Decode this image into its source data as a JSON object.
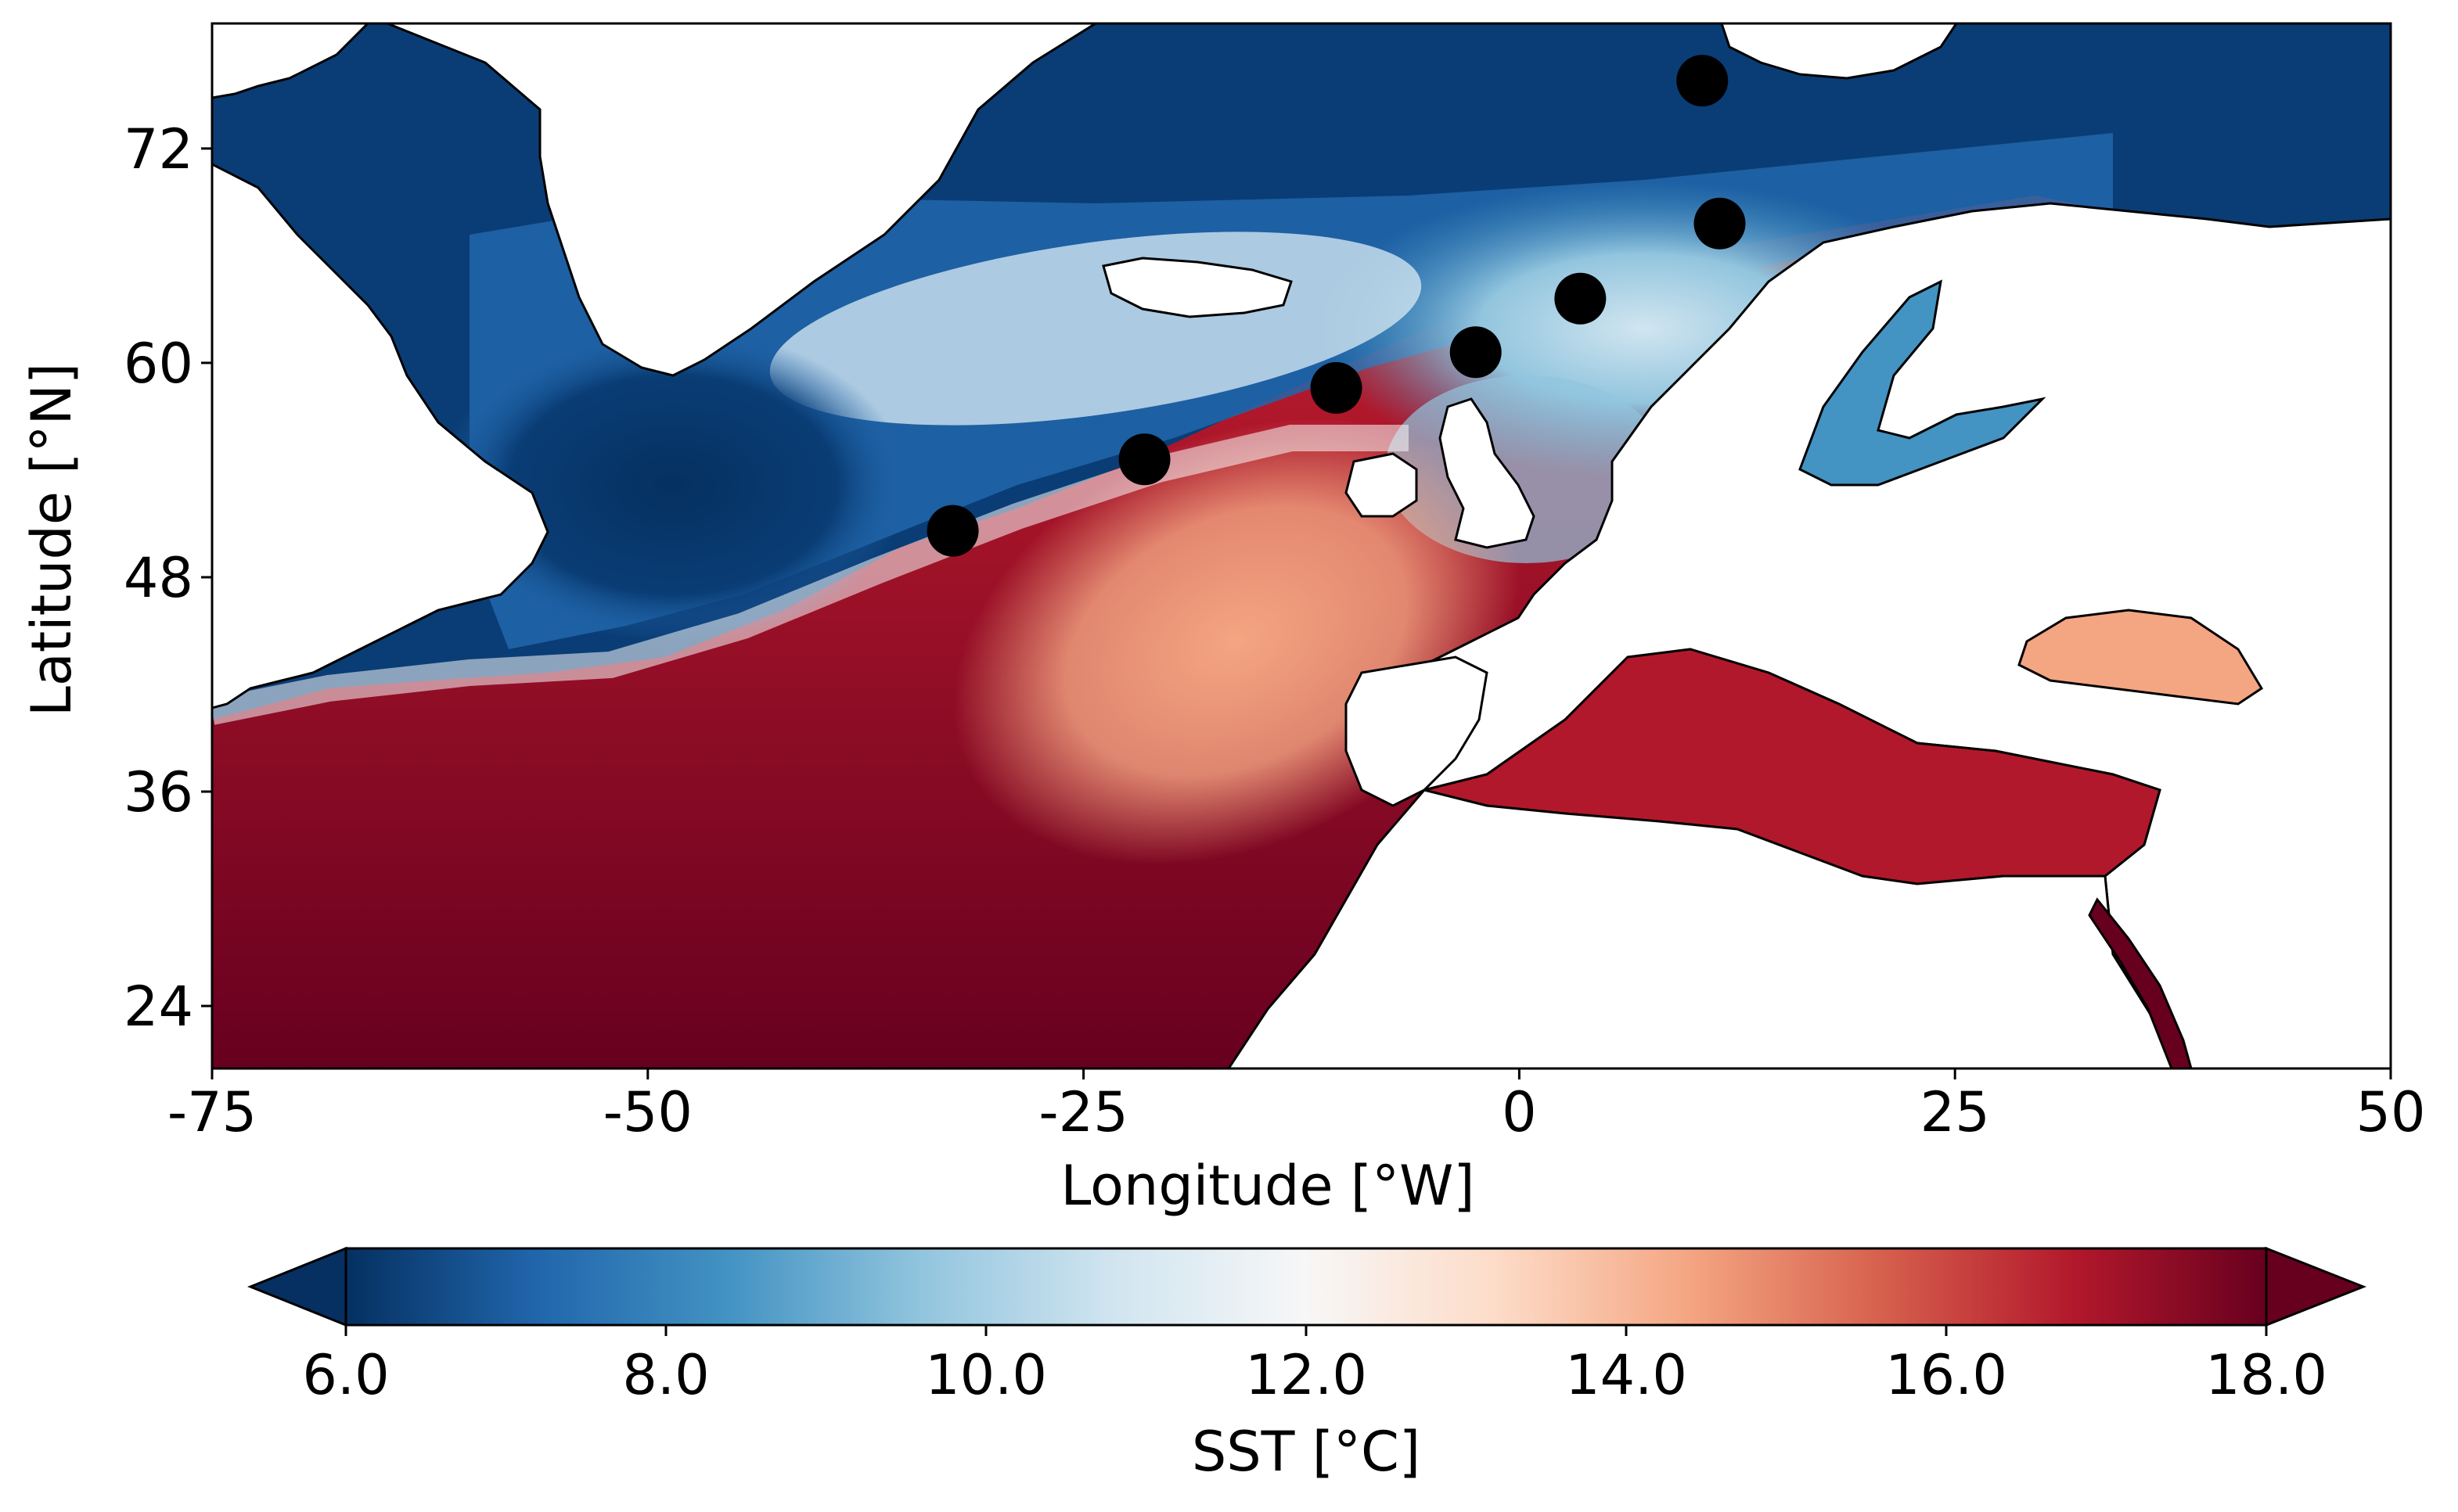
{
  "map": {
    "x_axis": {
      "label": "Longitude [°W]",
      "range": [
        -75,
        50
      ],
      "ticks": [
        -75,
        -50,
        -25,
        0,
        25,
        50
      ],
      "tick_labels": [
        "-75",
        "-50",
        "-25",
        "0",
        "25",
        "50"
      ]
    },
    "y_axis": {
      "label": "Latitude [°N]",
      "range": [
        20.5,
        79
      ],
      "ticks": [
        24,
        36,
        48,
        60,
        72
      ],
      "tick_labels": [
        "24",
        "36",
        "48",
        "60",
        "72"
      ]
    },
    "colorbar": {
      "label": "SST [°C]",
      "range": [
        6.0,
        18.0
      ],
      "ticks": [
        6.0,
        8.0,
        10.0,
        12.0,
        14.0,
        16.0,
        18.0
      ],
      "tick_labels": [
        "6.0",
        "8.0",
        "10.0",
        "12.0",
        "14.0",
        "16.0",
        "18.0"
      ],
      "extend": "both",
      "colormap": "RdBu_r",
      "colors": [
        "#053061",
        "#2166ac",
        "#4393c3",
        "#92c5de",
        "#d1e5f0",
        "#f7f7f7",
        "#fddbc7",
        "#f4a582",
        "#d6604d",
        "#b2182b",
        "#67001f"
      ]
    },
    "stations": [
      {
        "lon": -32.5,
        "lat": 50.6
      },
      {
        "lon": -21.5,
        "lat": 54.6
      },
      {
        "lon": -10.5,
        "lat": 58.6
      },
      {
        "lon": -2.5,
        "lat": 60.6
      },
      {
        "lon": 3.5,
        "lat": 63.6
      },
      {
        "lon": 10.5,
        "lat": 75.8
      },
      {
        "lon": 11.5,
        "lat": 67.8
      }
    ],
    "station_color": "#000000",
    "land_color": "#ffffff"
  }
}
